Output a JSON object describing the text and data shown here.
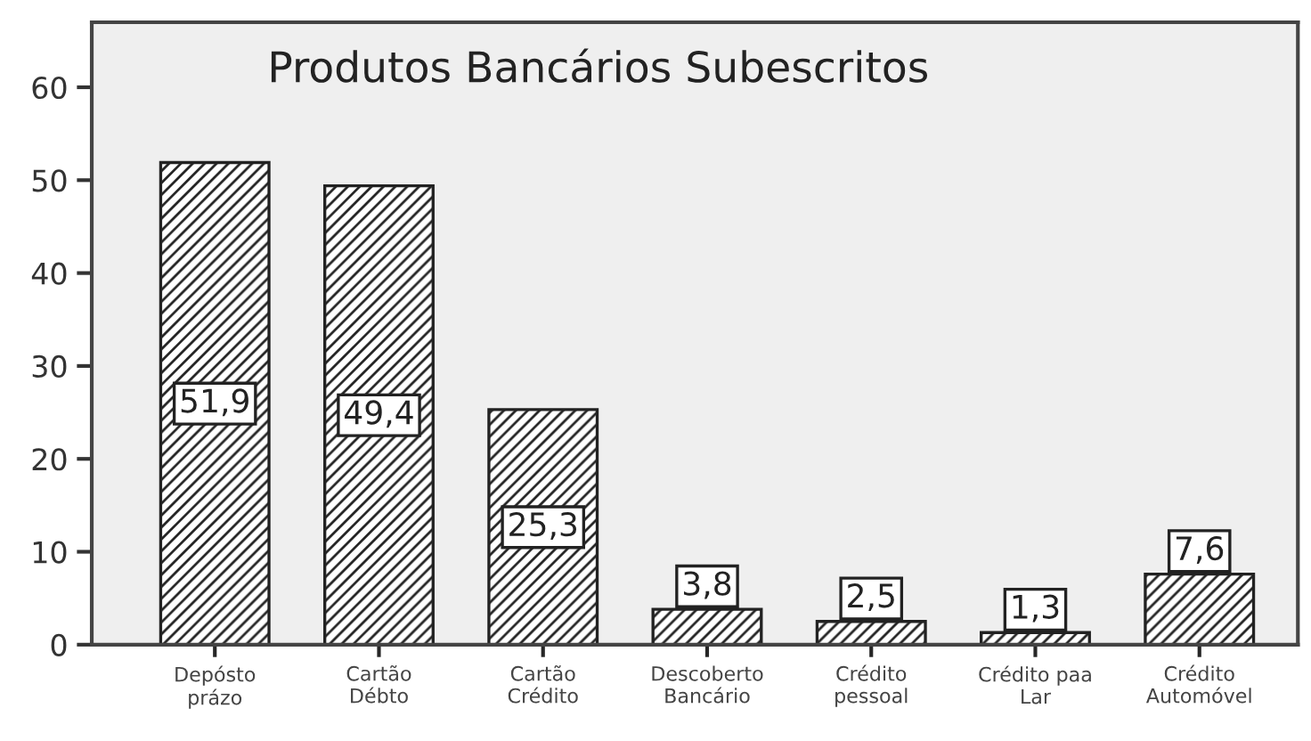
{
  "chart_data": {
    "type": "bar",
    "title": "Produtos Bancários Subescritos",
    "categories": [
      "Depósto\nprázo",
      "Cartão\nDébto",
      "Cartão\nCrédito",
      "Descoberto\nBancário",
      "Crédito\npessoal",
      "Crédito paa\nLar",
      "Crédito\nAutomóvel"
    ],
    "values": [
      51.9,
      49.4,
      25.3,
      3.8,
      2.5,
      1.3,
      7.6
    ],
    "value_labels": [
      "51,9",
      "49,4",
      "25,3",
      "3,8",
      "2,5",
      "1,3",
      "7,6"
    ],
    "color": "#222222",
    "ylim": [
      0,
      67
    ],
    "yticks": [
      0,
      10,
      20,
      30,
      40,
      50,
      60
    ],
    "grid": false,
    "legend": false
  }
}
